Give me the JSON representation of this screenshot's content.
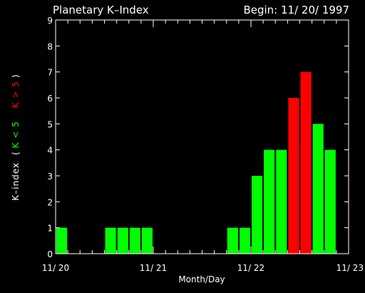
{
  "chart_data": {
    "type": "bar",
    "title": "Planetary K–Index",
    "subtitle": "Begin: 11/ 20/ 1997",
    "xlabel": "Month/Day",
    "ylabel_prefix": "K–index",
    "ylabel_open": "(",
    "ylabel_green": "K < 5",
    "ylabel_red": "K > 5",
    "ylabel_close": ")",
    "ylim": [
      0,
      9
    ],
    "y_ticks": [
      "0",
      "1",
      "2",
      "3",
      "4",
      "5",
      "6",
      "7",
      "8",
      "9"
    ],
    "x_ticks": [
      "11/ 20",
      "11/ 21",
      "11/ 22",
      "11/ 23"
    ],
    "threshold": 5,
    "colors": {
      "low": "#00ff00",
      "high": "#ff0000",
      "axis": "#ffffff",
      "background": "#000000"
    },
    "bins_per_day": 8,
    "values": [
      1,
      0,
      0,
      0,
      1,
      1,
      1,
      1,
      0,
      0,
      0,
      0,
      0,
      0,
      1,
      1,
      3,
      4,
      4,
      6,
      7,
      5,
      4,
      0
    ],
    "grid": false
  }
}
